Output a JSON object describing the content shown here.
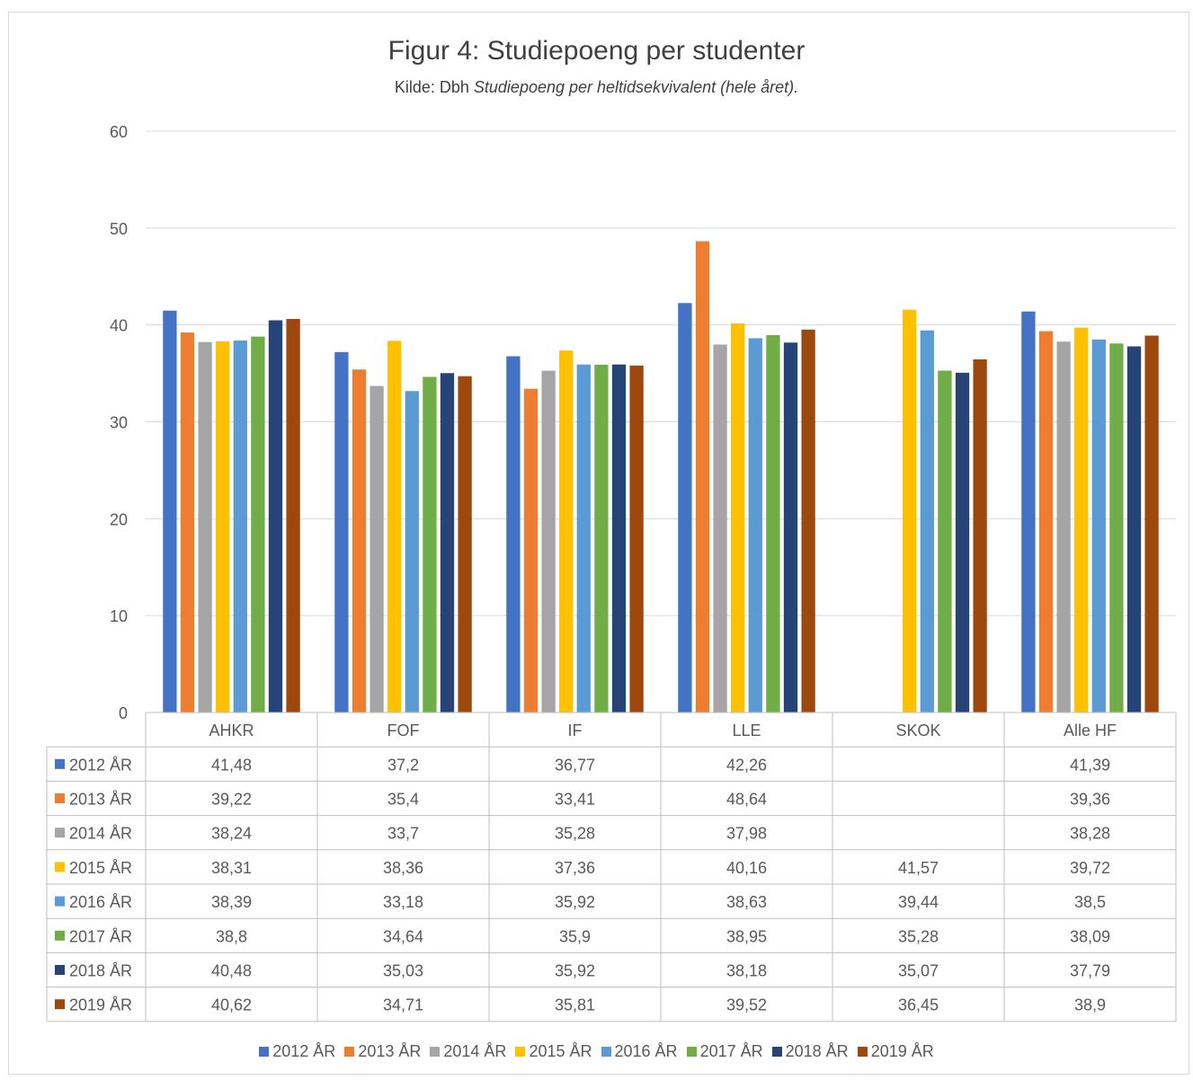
{
  "chart_data": {
    "type": "bar",
    "title": "Figur 4: Studiepoeng per studenter",
    "subtitle_prefix": "Kilde: Dbh ",
    "subtitle_italic": "Studiepoeng per heltidsekvivalent (hele året).",
    "ylim": [
      0,
      60
    ],
    "yticks": [
      "0",
      "10",
      "20",
      "30",
      "40",
      "50",
      "60"
    ],
    "grid": true,
    "legend_position": "bottom",
    "categories": [
      "AHKR",
      "FOF",
      "IF",
      "LLE",
      "SKOK",
      "Alle HF"
    ],
    "series": [
      {
        "name": "2012 ÅR",
        "color": "#4472c4",
        "values": [
          41.48,
          37.2,
          36.77,
          42.26,
          null,
          41.39
        ],
        "labels": [
          "41,48",
          "37,2",
          "36,77",
          "42,26",
          "",
          "41,39"
        ]
      },
      {
        "name": "2013 ÅR",
        "color": "#ed7d31",
        "values": [
          39.22,
          35.4,
          33.41,
          48.64,
          null,
          39.36
        ],
        "labels": [
          "39,22",
          "35,4",
          "33,41",
          "48,64",
          "",
          "39,36"
        ]
      },
      {
        "name": "2014 ÅR",
        "color": "#a5a5a5",
        "values": [
          38.24,
          33.7,
          35.28,
          37.98,
          null,
          38.28
        ],
        "labels": [
          "38,24",
          "33,7",
          "35,28",
          "37,98",
          "",
          "38,28"
        ]
      },
      {
        "name": "2015 ÅR",
        "color": "#ffc000",
        "values": [
          38.31,
          38.36,
          37.36,
          40.16,
          41.57,
          39.72
        ],
        "labels": [
          "38,31",
          "38,36",
          "37,36",
          "40,16",
          "41,57",
          "39,72"
        ]
      },
      {
        "name": "2016 ÅR",
        "color": "#5b9bd5",
        "values": [
          38.39,
          33.18,
          35.92,
          38.63,
          39.44,
          38.5
        ],
        "labels": [
          "38,39",
          "33,18",
          "35,92",
          "38,63",
          "39,44",
          "38,5"
        ]
      },
      {
        "name": "2017 ÅR",
        "color": "#70ad47",
        "values": [
          38.8,
          34.64,
          35.9,
          38.95,
          35.28,
          38.09
        ],
        "labels": [
          "38,8",
          "34,64",
          "35,9",
          "38,95",
          "35,28",
          "38,09"
        ]
      },
      {
        "name": "2018 ÅR",
        "color": "#264478",
        "values": [
          40.48,
          35.03,
          35.92,
          38.18,
          35.07,
          37.79
        ],
        "labels": [
          "40,48",
          "35,03",
          "35,92",
          "38,18",
          "35,07",
          "37,79"
        ]
      },
      {
        "name": "2019 ÅR",
        "color": "#9e480e",
        "values": [
          40.62,
          34.71,
          35.81,
          39.52,
          36.45,
          38.9
        ],
        "labels": [
          "40,62",
          "34,71",
          "35,81",
          "39,52",
          "36,45",
          "38,9"
        ]
      }
    ]
  }
}
